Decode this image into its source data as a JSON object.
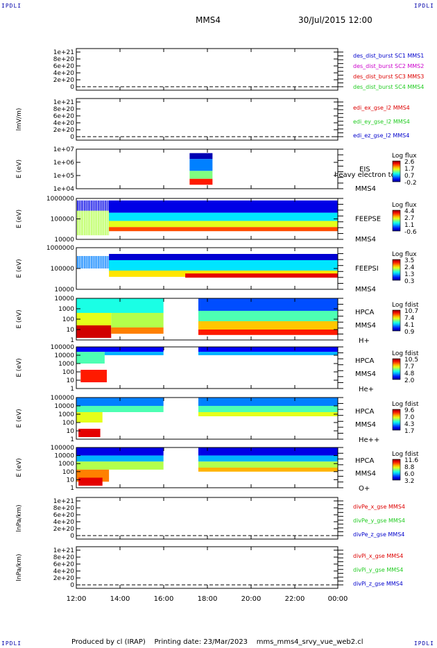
{
  "header": {
    "corner_tl": "IPDLI",
    "corner_tr": "IPDLI",
    "corner_bl": "IPDLI",
    "corner_br": "IPDLI",
    "spacecraft": "MMS4",
    "datetime": "30/Jul/2015 12:00"
  },
  "footer": {
    "produced_by": "Produced by cl (IRAP)",
    "printing_date": "Printing date: 23/Mar/2023",
    "script_name": "mms_mms4_srvy_vue_web2.cl"
  },
  "colors": {
    "blue": "#0000cc",
    "magenta": "#cc00cc",
    "red": "#dd0000",
    "green": "#22cc22"
  },
  "chart_data": {
    "type": "heatmap",
    "x_ticks": [
      "12:00",
      "14:00",
      "16:00",
      "18:00",
      "20:00",
      "22:00",
      "00:00"
    ],
    "panels": [
      {
        "kind": "line",
        "ylabel": "",
        "y_ticks": [
          "1e+21",
          "8e+20",
          "6e+20",
          "4e+20",
          "2e+20",
          "0"
        ],
        "legend": [
          {
            "text": "des_dist_burst SC1 MMS1",
            "color": "#0000cc"
          },
          {
            "text": "des_dist_burst SC2 MMS2",
            "color": "#cc00cc"
          },
          {
            "text": "des_dist_burst SC3 MMS3",
            "color": "#dd0000"
          },
          {
            "text": "des_dist_burst SC4 MMS4",
            "color": "#22cc22"
          }
        ]
      },
      {
        "kind": "line",
        "ylabel": "lmV/m)",
        "y_ticks": [
          "1e+21",
          "8e+20",
          "6e+20",
          "4e+20",
          "2e+20",
          "0"
        ],
        "legend": [
          {
            "text": "edi_ex_gse_l2 MMS4",
            "color": "#dd0000"
          },
          {
            "text": "edi_ey_gse_l2 MMS4",
            "color": "#22cc22"
          },
          {
            "text": "edi_ez_gse_l2 MMS4",
            "color": "#0000cc"
          }
        ]
      },
      {
        "kind": "spectrogram",
        "ylabel": "E (eV)",
        "y_ticks": [
          "1e+07",
          "1e+06",
          "1e+05",
          "1e+04"
        ],
        "labels": [
          "EIS",
          "heavy electron to",
          "MMS4"
        ],
        "cbar_title": "Log flux",
        "cbar_ticks": [
          "2.6",
          "1.7",
          "0.7",
          "-0.2"
        ]
      },
      {
        "kind": "spectrogram",
        "ylabel": "E (eV)",
        "y_ticks": [
          "1000000",
          "100000",
          "10000"
        ],
        "labels": [
          "FEEPSE",
          "MMS4"
        ],
        "cbar_title": "Log flux",
        "cbar_ticks": [
          "4.4",
          "2.7",
          "1.1",
          "-0.6"
        ]
      },
      {
        "kind": "spectrogram",
        "ylabel": "E (eV)",
        "y_ticks": [
          "1000000",
          "100000",
          "10000"
        ],
        "labels": [
          "FEEPSI",
          "MMS4"
        ],
        "cbar_title": "Log flux",
        "cbar_ticks": [
          "3.5",
          "2.4",
          "1.3",
          "0.3"
        ]
      },
      {
        "kind": "spectrogram",
        "ylabel": "E (eV)",
        "y_ticks": [
          "10000",
          "1000",
          "100",
          "10",
          "1"
        ],
        "labels": [
          "HPCA",
          "MMS4",
          "H+"
        ],
        "cbar_title": "Log fdist",
        "cbar_ticks": [
          "10.7",
          "7.4",
          "4.1",
          "0.9"
        ]
      },
      {
        "kind": "spectrogram",
        "ylabel": "E (eV)",
        "y_ticks": [
          "100000",
          "10000",
          "1000",
          "100",
          "10",
          "1"
        ],
        "labels": [
          "HPCA",
          "MMS4",
          "He+"
        ],
        "cbar_title": "Log fdist",
        "cbar_ticks": [
          "10.5",
          "7.7",
          "4.8",
          "2.0"
        ]
      },
      {
        "kind": "spectrogram",
        "ylabel": "E (eV)",
        "y_ticks": [
          "100000",
          "10000",
          "1000",
          "100",
          "10",
          "1"
        ],
        "labels": [
          "HPCA",
          "MMS4",
          "He++"
        ],
        "cbar_title": "Log fdist",
        "cbar_ticks": [
          "9.6",
          "7.0",
          "4.3",
          "1.7"
        ]
      },
      {
        "kind": "spectrogram",
        "ylabel": "E (eV)",
        "y_ticks": [
          "100000",
          "10000",
          "1000",
          "100",
          "10",
          "1"
        ],
        "labels": [
          "HPCA",
          "MMS4",
          "O+"
        ],
        "cbar_title": "Log fdist",
        "cbar_ticks": [
          "11.6",
          "8.8",
          "6.0",
          "3.2"
        ]
      },
      {
        "kind": "line",
        "ylabel": "lnPa/km)",
        "y_ticks": [
          "1e+21",
          "8e+20",
          "6e+20",
          "4e+20",
          "2e+20",
          "0"
        ],
        "legend": [
          {
            "text": "divPe_x_gse MMS4",
            "color": "#dd0000"
          },
          {
            "text": "divPe_y_gse MMS4",
            "color": "#22cc22"
          },
          {
            "text": "divPe_z_gse MMS4",
            "color": "#0000cc"
          }
        ]
      },
      {
        "kind": "line",
        "ylabel": "lnPa/km)",
        "y_ticks": [
          "1e+21",
          "8e+20",
          "6e+20",
          "4e+20",
          "2e+20",
          "0"
        ],
        "legend": [
          {
            "text": "divPi_x_gse MMS4",
            "color": "#dd0000"
          },
          {
            "text": "divPi_y_gse MMS4",
            "color": "#22cc22"
          },
          {
            "text": "divPi_z_gse MMS4",
            "color": "#0000cc"
          }
        ]
      }
    ]
  }
}
